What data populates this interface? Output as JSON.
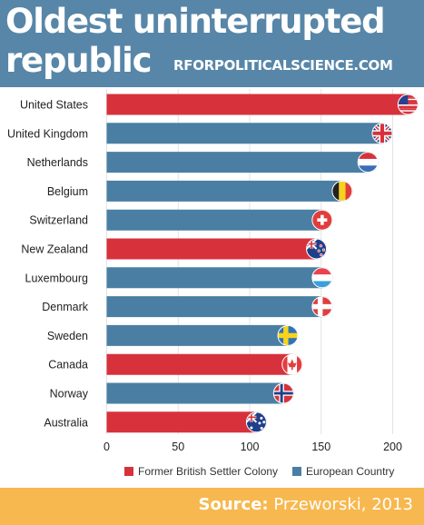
{
  "header": {
    "title": "Oldest uninterrupted republic",
    "site": "RFORPOLITICALSCIENCE.COM"
  },
  "footer": {
    "source_label": "Source:",
    "source_text": " Przeworski, 2013"
  },
  "legend": [
    {
      "name": "Former British Settler Colony",
      "color": "#d7323c"
    },
    {
      "name": "European Country",
      "color": "#4a7fa3"
    }
  ],
  "chart_data": {
    "type": "bar",
    "orientation": "horizontal",
    "categories": [
      "United States",
      "United Kingdom",
      "Netherlands",
      "Belgium",
      "Switzerland",
      "New Zealand",
      "Luxembourg",
      "Denmark",
      "Sweden",
      "Canada",
      "Norway",
      "Australia"
    ],
    "values": [
      218,
      200,
      190,
      172,
      158,
      154,
      158,
      158,
      134,
      137,
      131,
      112
    ],
    "groups": [
      "Former British Settler Colony",
      "European Country",
      "European Country",
      "European Country",
      "European Country",
      "Former British Settler Colony",
      "European Country",
      "European Country",
      "European Country",
      "Former British Settler Colony",
      "European Country",
      "Former British Settler Colony"
    ],
    "flag_icons": [
      "us-flag-icon",
      "uk-flag-icon",
      "netherlands-flag-icon",
      "belgium-flag-icon",
      "switzerland-flag-icon",
      "new-zealand-flag-icon",
      "luxembourg-flag-icon",
      "denmark-flag-icon",
      "sweden-flag-icon",
      "canada-flag-icon",
      "norway-flag-icon",
      "australia-flag-icon"
    ],
    "x_ticks": [
      0,
      50,
      100,
      150,
      200
    ],
    "xlim": [
      0,
      220
    ],
    "grid": true,
    "legend_position": "bottom",
    "colors": {
      "Former British Settler Colony": "#d7323c",
      "European Country": "#4a7fa3"
    }
  }
}
